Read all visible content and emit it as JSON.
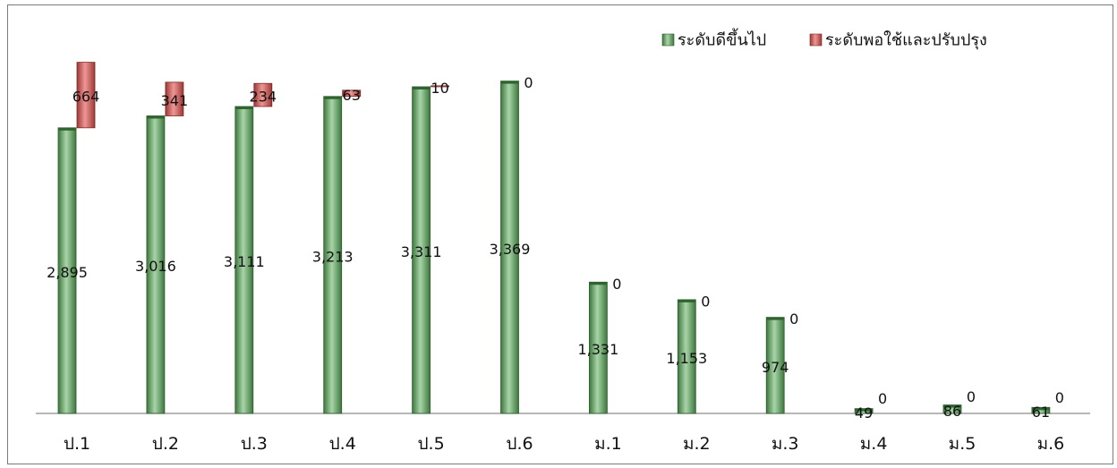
{
  "chart_data": {
    "type": "bar",
    "stacked": true,
    "categories": [
      "ป.1",
      "ป.2",
      "ป.3",
      "ป.4",
      "ป.5",
      "ป.6",
      "ม.1",
      "ม.2",
      "ม.3",
      "ม.4",
      "ม.5",
      "ม.6"
    ],
    "series": [
      {
        "name": "ระดับดีขึ้นไป",
        "color": "#5f9a5f",
        "values": [
          2895,
          3016,
          3111,
          3213,
          3311,
          3369,
          1331,
          1153,
          974,
          49,
          86,
          61
        ]
      },
      {
        "name": "ระดับพอใช้และปรับปรุง",
        "color": "#c0504d",
        "values": [
          664,
          341,
          234,
          63,
          10,
          0,
          0,
          0,
          0,
          0,
          0,
          0
        ]
      }
    ],
    "ylim": [
      0,
      4000
    ],
    "grid": false,
    "legend": "top-right",
    "data_labels": true
  }
}
